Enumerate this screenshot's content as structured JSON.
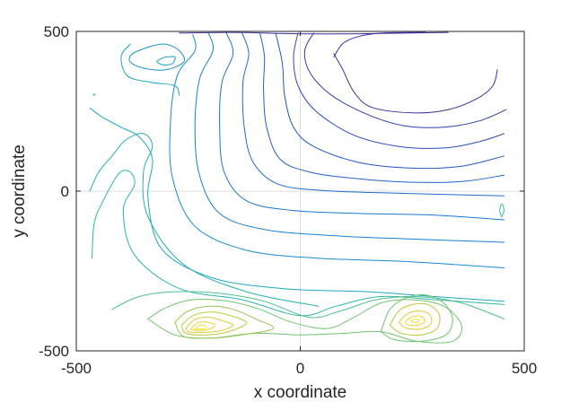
{
  "chart_data": {
    "type": "contour",
    "title": "",
    "xlabel": "x coordinate",
    "ylabel": "y coordinate",
    "xlim": [
      -500,
      500
    ],
    "ylim": [
      -500,
      500
    ],
    "xticks": [
      -500,
      0,
      500
    ],
    "yticks": [
      -500,
      0,
      500
    ],
    "xtick_labels": [
      "-500",
      "0",
      "500"
    ],
    "ytick_labels": [
      "-500",
      "0",
      "500"
    ],
    "grid": true,
    "colormap": "parula",
    "colors": {
      "axis": "#262626",
      "grid": "#dcdcdc",
      "low": "#3b2a8f",
      "mid": "#1fa6c4",
      "high": "#f9e234"
    },
    "contours": [
      {
        "level": 1,
        "points": [
          [
            -270,
            495
          ],
          [
            -150,
            497
          ],
          [
            -60,
            494
          ],
          [
            40,
            492
          ],
          [
            150,
            493
          ],
          [
            330,
            497
          ]
        ]
      },
      {
        "level": 2,
        "points": [
          [
            75,
            420
          ],
          [
            95,
            462
          ],
          [
            130,
            484
          ],
          [
            185,
            495
          ],
          [
            280,
            497
          ]
        ]
      },
      {
        "level": 2,
        "points": [
          [
            440,
            380
          ],
          [
            430,
            330
          ],
          [
            395,
            290
          ],
          [
            330,
            255
          ],
          [
            250,
            245
          ],
          [
            160,
            262
          ],
          [
            120,
            310
          ],
          [
            95,
            380
          ],
          [
            75,
            430
          ]
        ]
      },
      {
        "level": 3,
        "points": [
          [
            30,
            495
          ],
          [
            10,
            440
          ],
          [
            22,
            370
          ],
          [
            70,
            300
          ],
          [
            150,
            240
          ],
          [
            230,
            205
          ],
          [
            320,
            200
          ],
          [
            400,
            220
          ],
          [
            460,
            255
          ]
        ]
      },
      {
        "level": 4,
        "points": [
          [
            -5,
            495
          ],
          [
            -15,
            420
          ],
          [
            -5,
            330
          ],
          [
            35,
            250
          ],
          [
            120,
            175
          ],
          [
            220,
            140
          ],
          [
            320,
            135
          ],
          [
            400,
            155
          ],
          [
            455,
            180
          ]
        ]
      },
      {
        "level": 5,
        "points": [
          [
            -55,
            495
          ],
          [
            -40,
            400
          ],
          [
            -35,
            300
          ],
          [
            -15,
            200
          ],
          [
            30,
            140
          ],
          [
            130,
            90
          ],
          [
            250,
            72
          ],
          [
            360,
            78
          ],
          [
            455,
            110
          ]
        ]
      },
      {
        "level": 6,
        "points": [
          [
            -90,
            495
          ],
          [
            -80,
            420
          ],
          [
            -82,
            320
          ],
          [
            -75,
            200
          ],
          [
            -45,
            100
          ],
          [
            20,
            60
          ],
          [
            120,
            40
          ],
          [
            240,
            28
          ],
          [
            360,
            30
          ],
          [
            455,
            50
          ]
        ]
      },
      {
        "level": 7,
        "points": [
          [
            -130,
            495
          ],
          [
            -115,
            430
          ],
          [
            -128,
            340
          ],
          [
            -125,
            200
          ],
          [
            -105,
            90
          ],
          [
            -50,
            22
          ],
          [
            50,
            2
          ],
          [
            180,
            -5
          ],
          [
            320,
            -10
          ],
          [
            455,
            -15
          ]
        ]
      },
      {
        "level": 8,
        "points": [
          [
            -165,
            495
          ],
          [
            -150,
            430
          ],
          [
            -175,
            340
          ],
          [
            -180,
            200
          ],
          [
            -170,
            60
          ],
          [
            -120,
            -30
          ],
          [
            -20,
            -60
          ],
          [
            130,
            -70
          ],
          [
            300,
            -75
          ],
          [
            455,
            -90
          ]
        ]
      },
      {
        "level": 9,
        "points": [
          [
            -205,
            495
          ],
          [
            -195,
            440
          ],
          [
            -225,
            350
          ],
          [
            -235,
            200
          ],
          [
            -225,
            50
          ],
          [
            -180,
            -70
          ],
          [
            -80,
            -120
          ],
          [
            80,
            -140
          ],
          [
            250,
            -150
          ],
          [
            455,
            -160
          ]
        ]
      },
      {
        "level": 10,
        "points": [
          [
            -240,
            490
          ],
          [
            -235,
            440
          ],
          [
            -275,
            360
          ],
          [
            -290,
            210
          ],
          [
            -285,
            40
          ],
          [
            -235,
            -110
          ],
          [
            -120,
            -185
          ],
          [
            40,
            -210
          ],
          [
            230,
            -220
          ],
          [
            455,
            -240
          ]
        ]
      },
      {
        "level": 11,
        "points": [
          [
            -330,
            455
          ],
          [
            -300,
            460
          ],
          [
            -270,
            440
          ],
          [
            -260,
            405
          ],
          [
            -300,
            380
          ],
          [
            -350,
            385
          ],
          [
            -380,
            405
          ],
          [
            -375,
            430
          ],
          [
            -345,
            448
          ],
          [
            -330,
            455
          ]
        ]
      },
      {
        "level": 12,
        "points": [
          [
            -300,
            420
          ],
          [
            -280,
            420
          ],
          [
            -285,
            400
          ],
          [
            -305,
            395
          ],
          [
            -320,
            405
          ],
          [
            -310,
            415
          ],
          [
            -300,
            420
          ]
        ]
      },
      {
        "level": 13,
        "points": [
          [
            -380,
            460
          ],
          [
            -400,
            420
          ],
          [
            -385,
            360
          ],
          [
            -330,
            340
          ],
          [
            -280,
            330
          ],
          [
            -270,
            300
          ]
        ]
      },
      {
        "level": 14,
        "points": [
          [
            -470,
            260
          ],
          [
            -440,
            230
          ],
          [
            -400,
            200
          ],
          [
            -360,
            170
          ],
          [
            -330,
            100
          ],
          [
            -340,
            -20
          ],
          [
            -310,
            -180
          ],
          [
            -200,
            -270
          ],
          [
            -40,
            -305
          ],
          [
            150,
            -315
          ],
          [
            300,
            -330
          ],
          [
            455,
            -345
          ]
        ]
      },
      {
        "level": 15,
        "points": [
          [
            -470,
            0
          ],
          [
            -450,
            60
          ],
          [
            -420,
            110
          ],
          [
            -390,
            160
          ],
          [
            -350,
            180
          ],
          [
            -330,
            140
          ],
          [
            -350,
            60
          ],
          [
            -340,
            -80
          ],
          [
            -260,
            -230
          ],
          [
            -120,
            -315
          ],
          [
            40,
            -360
          ]
        ]
      },
      {
        "level": 16,
        "points": [
          [
            -465,
            -210
          ],
          [
            -460,
            -100
          ],
          [
            -440,
            -30
          ],
          [
            -405,
            55
          ],
          [
            -380,
            60
          ],
          [
            -370,
            20
          ],
          [
            -395,
            -60
          ],
          [
            -370,
            -200
          ],
          [
            -270,
            -305
          ],
          [
            -130,
            -340
          ],
          [
            0,
            -390
          ],
          [
            80,
            -360
          ],
          [
            180,
            -330
          ],
          [
            300,
            -340
          ],
          [
            455,
            -355
          ]
        ]
      },
      {
        "level": 17,
        "points": [
          [
            450,
            -80
          ],
          [
            455,
            -60
          ],
          [
            450,
            -40
          ],
          [
            445,
            -60
          ],
          [
            450,
            -80
          ]
        ]
      },
      {
        "level": 18,
        "points": [
          [
            -420,
            -370
          ],
          [
            -360,
            -330
          ],
          [
            -280,
            -315
          ],
          [
            -180,
            -320
          ],
          [
            -80,
            -345
          ],
          [
            20,
            -395
          ],
          [
            90,
            -375
          ],
          [
            170,
            -340
          ],
          [
            260,
            -330
          ],
          [
            360,
            -350
          ],
          [
            455,
            -400
          ]
        ]
      },
      {
        "level": 19,
        "points": [
          [
            -340,
            -400
          ],
          [
            -300,
            -365
          ],
          [
            -240,
            -340
          ],
          [
            -160,
            -345
          ],
          [
            -90,
            -370
          ],
          [
            -20,
            -410
          ],
          [
            60,
            -430
          ],
          [
            120,
            -395
          ],
          [
            180,
            -350
          ],
          [
            250,
            -340
          ],
          [
            320,
            -360
          ],
          [
            360,
            -420
          ],
          [
            340,
            -470
          ],
          [
            260,
            -470
          ],
          [
            180,
            -440
          ],
          [
            100,
            -445
          ],
          [
            0,
            -450
          ],
          [
            -100,
            -445
          ],
          [
            -200,
            -460
          ],
          [
            -280,
            -450
          ],
          [
            -340,
            -400
          ]
        ]
      },
      {
        "level": 20,
        "points": [
          [
            -280,
            -410
          ],
          [
            -250,
            -375
          ],
          [
            -200,
            -360
          ],
          [
            -150,
            -370
          ],
          [
            -100,
            -400
          ],
          [
            -60,
            -430
          ],
          [
            -130,
            -450
          ],
          [
            -200,
            -460
          ],
          [
            -260,
            -455
          ],
          [
            -280,
            -410
          ]
        ]
      },
      {
        "level": 21,
        "points": [
          [
            -265,
            -420
          ],
          [
            -240,
            -390
          ],
          [
            -200,
            -378
          ],
          [
            -160,
            -388
          ],
          [
            -120,
            -412
          ],
          [
            -160,
            -440
          ],
          [
            -210,
            -450
          ],
          [
            -255,
            -445
          ],
          [
            -265,
            -420
          ]
        ]
      },
      {
        "level": 22,
        "points": [
          [
            -255,
            -428
          ],
          [
            -235,
            -402
          ],
          [
            -205,
            -395
          ],
          [
            -175,
            -405
          ],
          [
            -150,
            -420
          ],
          [
            -180,
            -438
          ],
          [
            -220,
            -442
          ],
          [
            -250,
            -440
          ],
          [
            -255,
            -428
          ]
        ]
      },
      {
        "level": 23,
        "points": [
          [
            -245,
            -432
          ],
          [
            -228,
            -412
          ],
          [
            -208,
            -410
          ],
          [
            -190,
            -420
          ],
          [
            -205,
            -433
          ],
          [
            -232,
            -436
          ],
          [
            -245,
            -432
          ]
        ]
      },
      {
        "level": 24,
        "points": [
          [
            -236,
            -432
          ],
          [
            -224,
            -420
          ],
          [
            -212,
            -422
          ],
          [
            -214,
            -431
          ],
          [
            -236,
            -432
          ]
        ]
      },
      {
        "level": 19,
        "points": [
          [
            180,
            -440
          ],
          [
            200,
            -370
          ],
          [
            235,
            -335
          ],
          [
            280,
            -325
          ],
          [
            320,
            -350
          ],
          [
            340,
            -400
          ],
          [
            325,
            -450
          ],
          [
            270,
            -470
          ],
          [
            210,
            -465
          ],
          [
            180,
            -440
          ]
        ]
      },
      {
        "level": 21,
        "points": [
          [
            200,
            -420
          ],
          [
            220,
            -375
          ],
          [
            250,
            -355
          ],
          [
            285,
            -355
          ],
          [
            310,
            -385
          ],
          [
            305,
            -430
          ],
          [
            270,
            -450
          ],
          [
            225,
            -445
          ],
          [
            200,
            -420
          ]
        ]
      },
      {
        "level": 22,
        "points": [
          [
            220,
            -410
          ],
          [
            238,
            -385
          ],
          [
            262,
            -375
          ],
          [
            288,
            -385
          ],
          [
            292,
            -415
          ],
          [
            268,
            -432
          ],
          [
            235,
            -428
          ],
          [
            220,
            -410
          ]
        ]
      },
      {
        "level": 23,
        "points": [
          [
            235,
            -408
          ],
          [
            250,
            -393
          ],
          [
            270,
            -392
          ],
          [
            278,
            -408
          ],
          [
            262,
            -420
          ],
          [
            240,
            -418
          ],
          [
            235,
            -408
          ]
        ]
      },
      {
        "level": 24,
        "points": [
          [
            246,
            -408
          ],
          [
            256,
            -400
          ],
          [
            266,
            -404
          ],
          [
            260,
            -412
          ],
          [
            246,
            -408
          ]
        ]
      },
      {
        "level": 18,
        "points": [
          [
            -460,
            305
          ],
          [
            -462,
            300
          ],
          [
            -458,
            302
          ]
        ]
      }
    ]
  }
}
